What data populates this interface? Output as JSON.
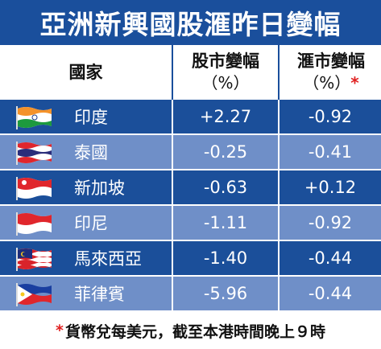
{
  "title": "亞洲新興國股滙昨日變幅",
  "chart_data": {
    "type": "table",
    "columns": {
      "country": "國家",
      "stock": "股市變幅",
      "stock_unit": "（%）",
      "fx": "滙市變幅",
      "fx_unit": "（%）",
      "fx_marker": "*"
    },
    "rows": [
      {
        "country": "印度",
        "stock": "+2.27",
        "fx": "-0.92",
        "flag": "india-flag-icon"
      },
      {
        "country": "泰國",
        "stock": "-0.25",
        "fx": "-0.41",
        "flag": "thailand-flag-icon"
      },
      {
        "country": "新加坡",
        "stock": "-0.63",
        "fx": "+0.12",
        "flag": "singapore-flag-icon"
      },
      {
        "country": "印尼",
        "stock": "-1.11",
        "fx": "-0.92",
        "flag": "indonesia-flag-icon"
      },
      {
        "country": "馬來西亞",
        "stock": "-1.40",
        "fx": "-0.44",
        "flag": "malaysia-flag-icon"
      },
      {
        "country": "菲律賓",
        "stock": "-5.96",
        "fx": "-0.44",
        "flag": "philippines-flag-icon"
      }
    ]
  },
  "footnote": {
    "marker": "*",
    "text": "貨幣兌每美元，截至本港時間晚上９時"
  },
  "colors": {
    "title_bg": "#1a4f9c",
    "row_dark": "#1b4f9a",
    "row_light": "#6f8fc8",
    "marker": "#e02020"
  }
}
